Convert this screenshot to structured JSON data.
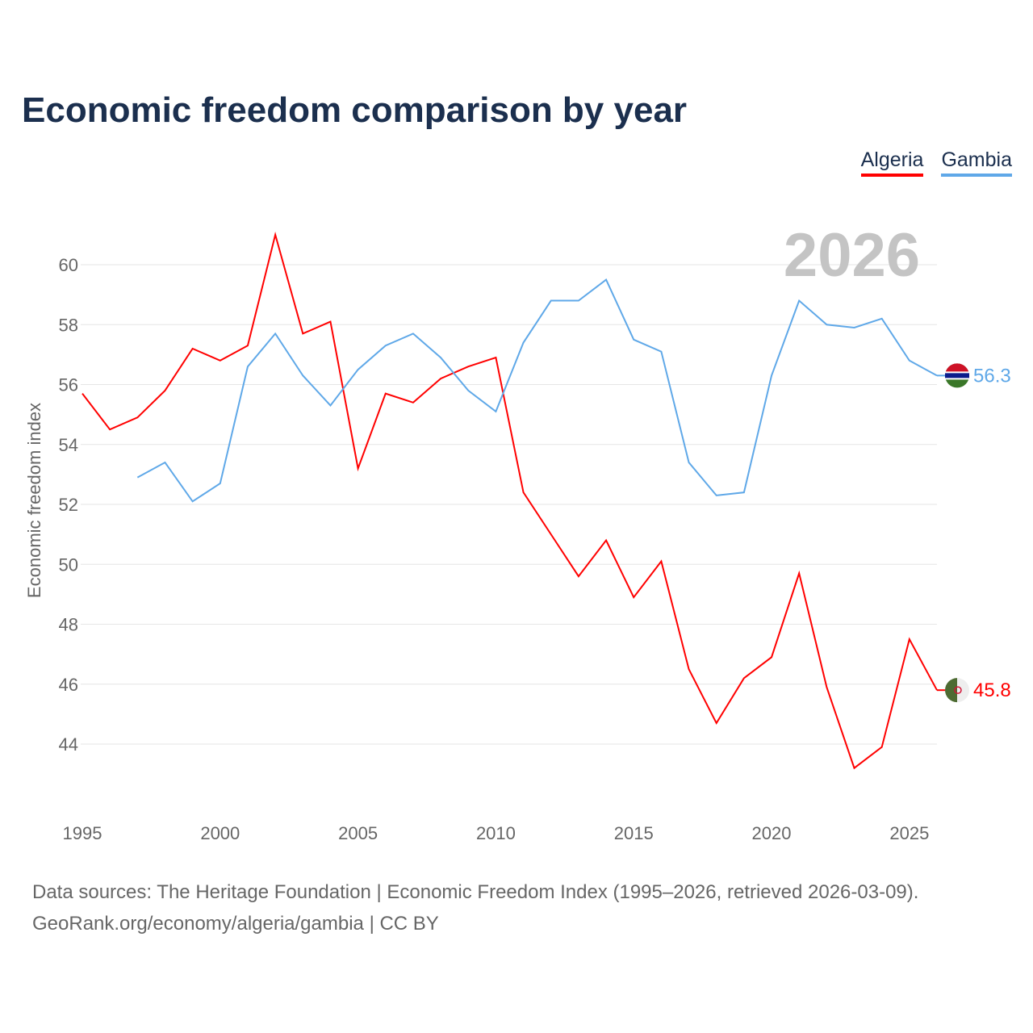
{
  "title": "Economic freedom comparison by year",
  "year_watermark": "2026",
  "footer": {
    "line1": "Data sources: The Heritage Foundation | Economic Freedom Index (1995–2026, retrieved 2026-03-09).",
    "line2": "GeoRank.org/economy/algeria/gambia | CC BY"
  },
  "chart_data": {
    "type": "line",
    "title": "Economic freedom comparison by year",
    "xlabel": "",
    "ylabel": "Economic freedom index",
    "xlim": [
      1995,
      2026
    ],
    "ylim": [
      41.6,
      62
    ],
    "xticks": [
      1995,
      2000,
      2005,
      2010,
      2015,
      2020,
      2025
    ],
    "yticks": [
      44,
      46,
      48,
      50,
      52,
      54,
      56,
      58,
      60
    ],
    "grid": true,
    "legend_position": "top-right",
    "series": [
      {
        "name": "Algeria",
        "color": "#ff0000",
        "end_label": "45.8",
        "flag": "algeria-flag-icon",
        "x": [
          1995,
          1996,
          1997,
          1998,
          1999,
          2000,
          2001,
          2002,
          2003,
          2004,
          2005,
          2006,
          2007,
          2008,
          2009,
          2010,
          2011,
          2012,
          2013,
          2014,
          2015,
          2016,
          2017,
          2018,
          2019,
          2020,
          2021,
          2022,
          2023,
          2024,
          2025,
          2026
        ],
        "values": [
          55.7,
          54.5,
          54.9,
          55.8,
          57.2,
          56.8,
          57.3,
          61.0,
          57.7,
          58.1,
          53.2,
          55.7,
          55.4,
          56.2,
          56.6,
          56.9,
          52.4,
          51.0,
          49.6,
          50.8,
          48.9,
          50.1,
          46.5,
          44.7,
          46.2,
          46.9,
          49.7,
          45.9,
          43.2,
          43.9,
          47.5,
          45.8
        ]
      },
      {
        "name": "Gambia",
        "color": "#5fa8e8",
        "end_label": "56.3",
        "flag": "gambia-flag-icon",
        "x": [
          1997,
          1998,
          1999,
          2000,
          2001,
          2002,
          2003,
          2004,
          2005,
          2006,
          2007,
          2008,
          2009,
          2010,
          2011,
          2012,
          2013,
          2014,
          2015,
          2016,
          2017,
          2018,
          2019,
          2020,
          2021,
          2022,
          2023,
          2024,
          2025,
          2026
        ],
        "values": [
          52.9,
          53.4,
          52.1,
          52.7,
          56.6,
          57.7,
          56.3,
          55.3,
          56.5,
          57.3,
          57.7,
          56.9,
          55.8,
          55.1,
          57.4,
          58.8,
          58.8,
          59.5,
          57.5,
          57.1,
          53.4,
          52.3,
          52.4,
          56.3,
          58.8,
          58.0,
          57.9,
          58.2,
          56.8,
          56.3
        ]
      }
    ]
  }
}
